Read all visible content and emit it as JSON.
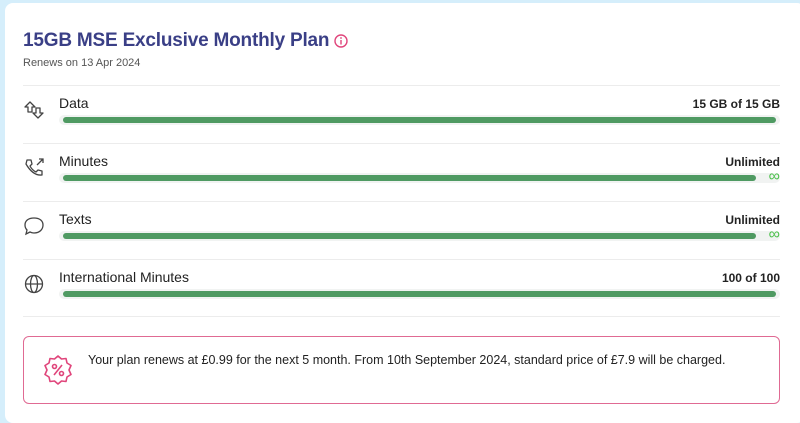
{
  "plan": {
    "title": "15GB MSE Exclusive Monthly Plan",
    "info_icon": "info-icon",
    "renews": "Renews on 13 Apr 2024"
  },
  "colors": {
    "title": "#3a3f86",
    "bar": "#4f9a62",
    "infinity": "#4cc04c",
    "banner_border": "#e06a93",
    "background": "#d5eefb"
  },
  "usage": [
    {
      "icon": "data-transfer-icon",
      "label": "Data",
      "value": "15 GB of 15 GB",
      "percent": 100,
      "unlimited": false
    },
    {
      "icon": "phone-outgoing-icon",
      "label": "Minutes",
      "value": "Unlimited",
      "percent": 100,
      "unlimited": true
    },
    {
      "icon": "chat-bubbles-icon",
      "label": "Texts",
      "value": "Unlimited",
      "percent": 100,
      "unlimited": true
    },
    {
      "icon": "globe-icon",
      "label": "International Minutes",
      "value": "100 of 100",
      "percent": 100,
      "unlimited": false
    }
  ],
  "banner": {
    "icon": "discount-badge-icon",
    "text": "Your plan renews at £0.99 for the next 5 month. From 10th September 2024, standard price of £7.9 will be charged."
  }
}
